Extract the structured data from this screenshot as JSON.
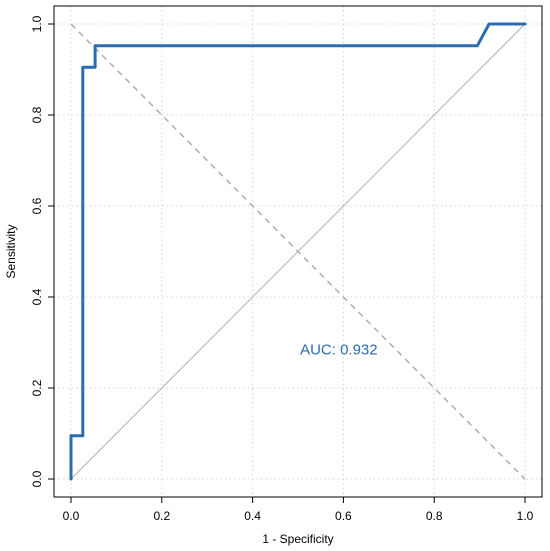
{
  "chart_data": {
    "type": "line",
    "title": "",
    "xlabel": "1 - Specificity",
    "ylabel": "Sensitivity",
    "xlim": [
      0,
      1
    ],
    "ylim": [
      0,
      1
    ],
    "x_ticks": [
      "0.0",
      "0.2",
      "0.4",
      "0.6",
      "0.8",
      "1.0"
    ],
    "y_ticks": [
      "0.0",
      "0.2",
      "0.4",
      "0.6",
      "0.8",
      "1.0"
    ],
    "grid": true,
    "series": [
      {
        "color": "#2b6cb0",
        "x": [
          0,
          0,
          0.026,
          0.026,
          0.026,
          0.053,
          0.053,
          0.895,
          0.921,
          1.0
        ],
        "y": [
          0,
          0.095,
          0.095,
          0.905,
          0.905,
          0.905,
          0.952,
          0.952,
          1.0,
          1.0
        ]
      }
    ],
    "reference_lines": [
      {
        "style": "solid",
        "color": "#b0b0b0",
        "x": [
          0,
          1
        ],
        "y": [
          0,
          1
        ]
      },
      {
        "style": "dashed",
        "color": "#a8a8a8",
        "x": [
          0,
          1
        ],
        "y": [
          1,
          0
        ]
      }
    ],
    "annotations": [
      {
        "text": "AUC: 0.932",
        "x": 0.59,
        "y": 0.285,
        "color": "#2b6cb0"
      }
    ]
  }
}
